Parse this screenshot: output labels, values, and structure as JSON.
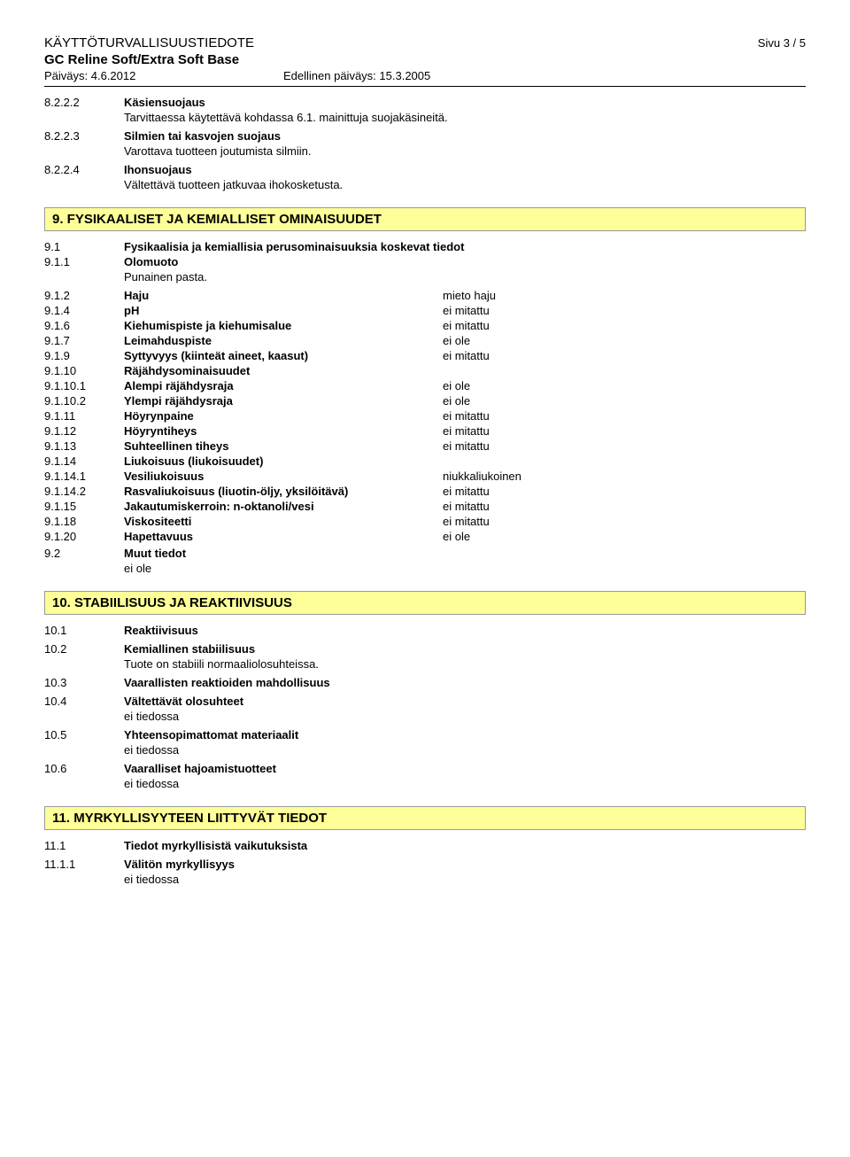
{
  "header": {
    "doc_type": "KÄYTTÖTURVALLISUUSTIEDOTE",
    "page_label": "Sivu 3 / 5",
    "product": "GC Reline Soft/Extra Soft Base",
    "date_label": "Päiväys: 4.6.2012",
    "prev_date_label": "Edellinen päiväys: 15.3.2005"
  },
  "s8": {
    "items": [
      {
        "num": "8.2.2.2",
        "label": "Käsiensuojaus",
        "text": "Tarvittaessa käytettävä kohdassa 6.1. mainittuja suojakäsineitä."
      },
      {
        "num": "8.2.2.3",
        "label": "Silmien tai kasvojen suojaus",
        "text": "Varottava tuotteen joutumista silmiin."
      },
      {
        "num": "8.2.2.4",
        "label": "Ihonsuojaus",
        "text": "Vältettävä tuotteen jatkuvaa ihokosketusta."
      }
    ]
  },
  "s9": {
    "heading": "9. FYSIKAALISET JA KEMIALLISET OMINAISUUDET",
    "intro_num": "9.1",
    "intro_label": "Fysikaalisia ja kemiallisia perusominaisuuksia koskevat tiedot",
    "olomuoto_num": "9.1.1",
    "olomuoto_label": "Olomuoto",
    "olomuoto_value": "Punainen pasta.",
    "props": [
      {
        "num": "9.1.2",
        "label": "Haju",
        "value": "mieto haju"
      },
      {
        "num": "9.1.4",
        "label": "pH",
        "value": "ei mitattu"
      },
      {
        "num": "9.1.6",
        "label": "Kiehumispiste ja kiehumisalue",
        "value": "ei mitattu"
      },
      {
        "num": "9.1.7",
        "label": "Leimahduspiste",
        "value": "ei ole"
      },
      {
        "num": "9.1.9",
        "label": "Syttyvyys (kiinteät aineet, kaasut)",
        "value": "ei mitattu"
      },
      {
        "num": "9.1.10",
        "label": "Räjähdysominaisuudet",
        "value": ""
      },
      {
        "num": "9.1.10.1",
        "label": "Alempi räjähdysraja",
        "value": "ei ole"
      },
      {
        "num": "9.1.10.2",
        "label": "Ylempi räjähdysraja",
        "value": "ei ole"
      },
      {
        "num": "9.1.11",
        "label": "Höyrynpaine",
        "value": "ei mitattu"
      },
      {
        "num": "9.1.12",
        "label": "Höyryntiheys",
        "value": "ei mitattu"
      },
      {
        "num": "9.1.13",
        "label": "Suhteellinen tiheys",
        "value": "ei mitattu"
      },
      {
        "num": "9.1.14",
        "label": "Liukoisuus (liukoisuudet)",
        "value": ""
      },
      {
        "num": "9.1.14.1",
        "label": "Vesiliukoisuus",
        "value": "niukkaliukoinen"
      },
      {
        "num": "9.1.14.2",
        "label": "Rasvaliukoisuus (liuotin-öljy, yksilöitävä)",
        "value": "ei mitattu"
      },
      {
        "num": "9.1.15",
        "label": "Jakautumiskerroin: n-oktanoli/vesi",
        "value": "ei mitattu"
      },
      {
        "num": "9.1.18",
        "label": "Viskositeetti",
        "value": "ei mitattu"
      },
      {
        "num": "9.1.20",
        "label": "Hapettavuus",
        "value": "ei ole"
      }
    ],
    "muut_num": "9.2",
    "muut_label": "Muut tiedot",
    "muut_value": "ei ole"
  },
  "s10": {
    "heading": "10. STABIILISUUS JA REAKTIIVISUUS",
    "items": [
      {
        "num": "10.1",
        "label": "Reaktiivisuus",
        "text": ""
      },
      {
        "num": "10.2",
        "label": "Kemiallinen stabiilisuus",
        "text": "Tuote on stabiili normaaliolosuhteissa."
      },
      {
        "num": "10.3",
        "label": "Vaarallisten reaktioiden mahdollisuus",
        "text": ""
      },
      {
        "num": "10.4",
        "label": "Vältettävät olosuhteet",
        "text": "ei tiedossa"
      },
      {
        "num": "10.5",
        "label": "Yhteensopimattomat materiaalit",
        "text": "ei tiedossa"
      },
      {
        "num": "10.6",
        "label": "Vaaralliset hajoamistuotteet",
        "text": "ei tiedossa"
      }
    ]
  },
  "s11": {
    "heading": "11. MYRKYLLISYYTEEN LIITTYVÄT TIEDOT",
    "items": [
      {
        "num": "11.1",
        "label": "Tiedot myrkyllisistä vaikutuksista",
        "text": ""
      },
      {
        "num": "11.1.1",
        "label": "Välitön myrkyllisyys",
        "text": "ei tiedossa"
      }
    ]
  }
}
